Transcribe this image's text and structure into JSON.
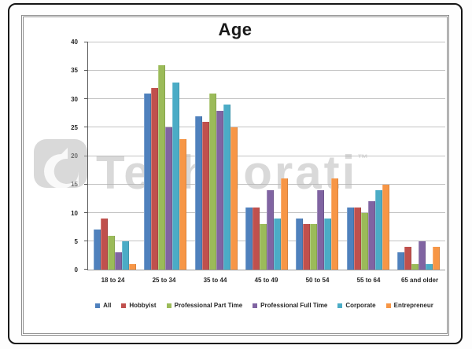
{
  "watermark": {
    "text": "Technorati",
    "tm": "™"
  },
  "chart_data": {
    "type": "bar",
    "title": "Age",
    "categories": [
      "18 to 24",
      "25 to 34",
      "35 to 44",
      "45 to 49",
      "50 to 54",
      "55 to 64",
      "65 and older"
    ],
    "series": [
      {
        "name": "All",
        "color": "#4F81BD",
        "values": [
          7,
          31,
          27,
          11,
          9,
          11,
          3
        ]
      },
      {
        "name": "Hobbyist",
        "color": "#C0504D",
        "values": [
          9,
          32,
          26,
          11,
          8,
          11,
          4
        ]
      },
      {
        "name": "Professional Part Time",
        "color": "#9BBB59",
        "values": [
          6,
          36,
          31,
          8,
          8,
          10,
          1
        ]
      },
      {
        "name": "Professional Full Time",
        "color": "#8064A2",
        "values": [
          3,
          25,
          28,
          14,
          14,
          12,
          5
        ]
      },
      {
        "name": "Corporate",
        "color": "#4BACC6",
        "values": [
          5,
          33,
          29,
          9,
          9,
          14,
          1
        ]
      },
      {
        "name": "Entrepreneur",
        "color": "#F79646",
        "values": [
          1,
          23,
          25,
          16,
          16,
          15,
          4
        ]
      }
    ],
    "ylim": [
      0,
      40
    ],
    "ytick_step": 5,
    "grid": true,
    "legend_position": "bottom",
    "xlabel": "",
    "ylabel": ""
  }
}
